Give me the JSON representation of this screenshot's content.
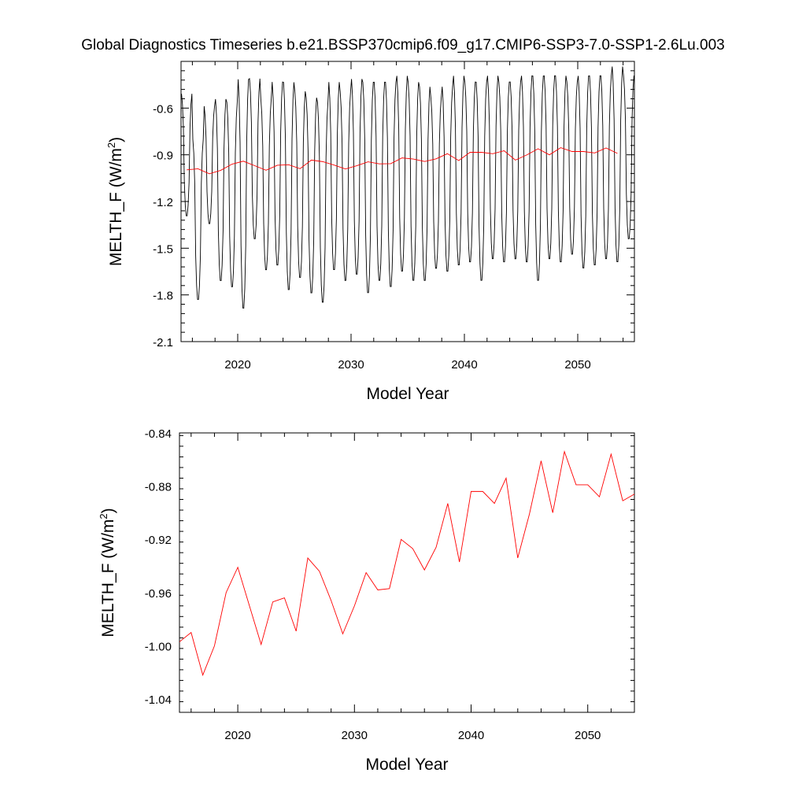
{
  "figure": {
    "title": "Global Diagnostics Timeseries b.e21.BSSP370cmip6.f09_g17.CMIP6-SSP3-7.0-SSP1-2.6Lu.003"
  },
  "chart_data": [
    {
      "type": "line",
      "xlabel": "Model Year",
      "ylabel_main": "MELTH_F (W/m",
      "ylabel_sup": "2",
      "ylabel_tail": ")",
      "xlim": [
        2015.0,
        2055.0
      ],
      "ylim": [
        -2.1,
        -0.3
      ],
      "xticks": [
        2020,
        2030,
        2040,
        2050
      ],
      "xtick_labels": [
        "2020",
        "2030",
        "2040",
        "2050"
      ],
      "yticks": [
        -0.6,
        -0.9,
        -1.2,
        -1.5,
        -1.8,
        -2.1
      ],
      "ytick_labels": [
        "-0.6",
        "-0.9",
        "-1.2",
        "-1.5",
        "-1.8",
        "-2.1"
      ],
      "grid": false,
      "series": [
        {
          "color": "#000000",
          "seasonal_max": [
            -0.5,
            -0.79,
            -0.58,
            -0.53,
            -0.55,
            -0.4,
            -0.4,
            -0.53,
            -0.42,
            -0.42,
            -0.48,
            -0.52,
            -0.55,
            -0.42,
            -0.48,
            -0.4,
            -0.42,
            -0.42,
            -0.42,
            -0.38,
            -0.42,
            -0.45,
            -0.52,
            -0.45,
            -0.38,
            -0.42,
            -0.42,
            -0.38,
            -0.42,
            -0.42,
            -0.38,
            -0.38,
            -0.38,
            -0.38,
            -0.42,
            -0.38,
            -0.38,
            -0.38,
            -0.32,
            -0.38
          ],
          "seasonal_min": [
            -1.3,
            -1.84,
            -1.35,
            -1.72,
            -1.76,
            -1.9,
            -1.45,
            -1.65,
            -1.62,
            -1.78,
            -1.7,
            -1.8,
            -1.86,
            -1.65,
            -1.72,
            -1.68,
            -1.8,
            -1.72,
            -1.76,
            -1.66,
            -1.72,
            -1.72,
            -1.64,
            -1.66,
            -1.62,
            -1.6,
            -1.72,
            -1.58,
            -1.6,
            -1.58,
            -1.6,
            -1.72,
            -1.58,
            -1.6,
            -1.55,
            -1.64,
            -1.62,
            -1.58,
            -1.6,
            -1.45
          ]
        },
        {
          "color": "#ff0000",
          "x": [
            2015.5,
            2016.5,
            2017.5,
            2018.5,
            2019.5,
            2020.5,
            2021.5,
            2022.5,
            2023.5,
            2024.5,
            2025.5,
            2026.5,
            2027.5,
            2028.5,
            2029.5,
            2030.5,
            2031.5,
            2032.5,
            2033.5,
            2034.5,
            2035.5,
            2036.5,
            2037.5,
            2038.5,
            2039.5,
            2040.5,
            2041.5,
            2042.5,
            2043.5,
            2044.5,
            2045.5,
            2046.5,
            2047.5,
            2048.5,
            2049.5,
            2050.5,
            2051.5,
            2052.5,
            2053.5
          ],
          "values": [
            -0.997,
            -0.99,
            -1.022,
            -1.0,
            -0.96,
            -0.941,
            -0.97,
            -0.999,
            -0.967,
            -0.964,
            -0.989,
            -0.934,
            -0.944,
            -0.966,
            -0.991,
            -0.97,
            -0.945,
            -0.958,
            -0.957,
            -0.92,
            -0.927,
            -0.943,
            -0.926,
            -0.893,
            -0.937,
            -0.884,
            -0.884,
            -0.893,
            -0.874,
            -0.934,
            -0.901,
            -0.861,
            -0.9,
            -0.854,
            -0.879,
            -0.879,
            -0.888,
            -0.856,
            -0.891
          ]
        }
      ]
    },
    {
      "type": "line",
      "xlabel": "Model Year",
      "ylabel_main": "MELTH_F (W/m",
      "ylabel_sup": "2",
      "ylabel_tail": ")",
      "xlim": [
        2015.0,
        2054.0
      ],
      "ylim": [
        -1.05,
        -0.84
      ],
      "xticks": [
        2020,
        2030,
        2040,
        2050
      ],
      "xtick_labels": [
        "2020",
        "2030",
        "2040",
        "2050"
      ],
      "yticks": [
        -0.84,
        -0.88,
        -0.92,
        -0.96,
        -1.0,
        -1.04
      ],
      "ytick_labels": [
        "-0.84",
        "-0.88",
        "-0.92",
        "-0.96",
        "-1.00",
        "-1.04"
      ],
      "grid": false,
      "series": [
        {
          "color": "#ff0000",
          "x": [
            2015.0,
            2016.0,
            2017.0,
            2018.0,
            2019.0,
            2020.0,
            2021.0,
            2022.0,
            2023.0,
            2024.0,
            2025.0,
            2026.0,
            2027.0,
            2028.0,
            2029.0,
            2030.0,
            2031.0,
            2032.0,
            2033.0,
            2034.0,
            2035.0,
            2036.0,
            2037.0,
            2038.0,
            2039.0,
            2040.0,
            2041.0,
            2042.0,
            2043.0,
            2044.0,
            2045.0,
            2046.0,
            2047.0,
            2048.0,
            2049.0,
            2050.0,
            2051.0,
            2052.0,
            2053.0,
            2054.0
          ],
          "values": [
            -0.997,
            -0.99,
            -1.022,
            -1.0,
            -0.96,
            -0.941,
            -0.97,
            -0.999,
            -0.967,
            -0.964,
            -0.989,
            -0.934,
            -0.944,
            -0.966,
            -0.991,
            -0.97,
            -0.945,
            -0.958,
            -0.957,
            -0.92,
            -0.927,
            -0.943,
            -0.926,
            -0.893,
            -0.937,
            -0.884,
            -0.884,
            -0.893,
            -0.874,
            -0.934,
            -0.901,
            -0.861,
            -0.9,
            -0.854,
            -0.879,
            -0.879,
            -0.888,
            -0.856,
            -0.891,
            -0.886
          ]
        }
      ]
    }
  ]
}
